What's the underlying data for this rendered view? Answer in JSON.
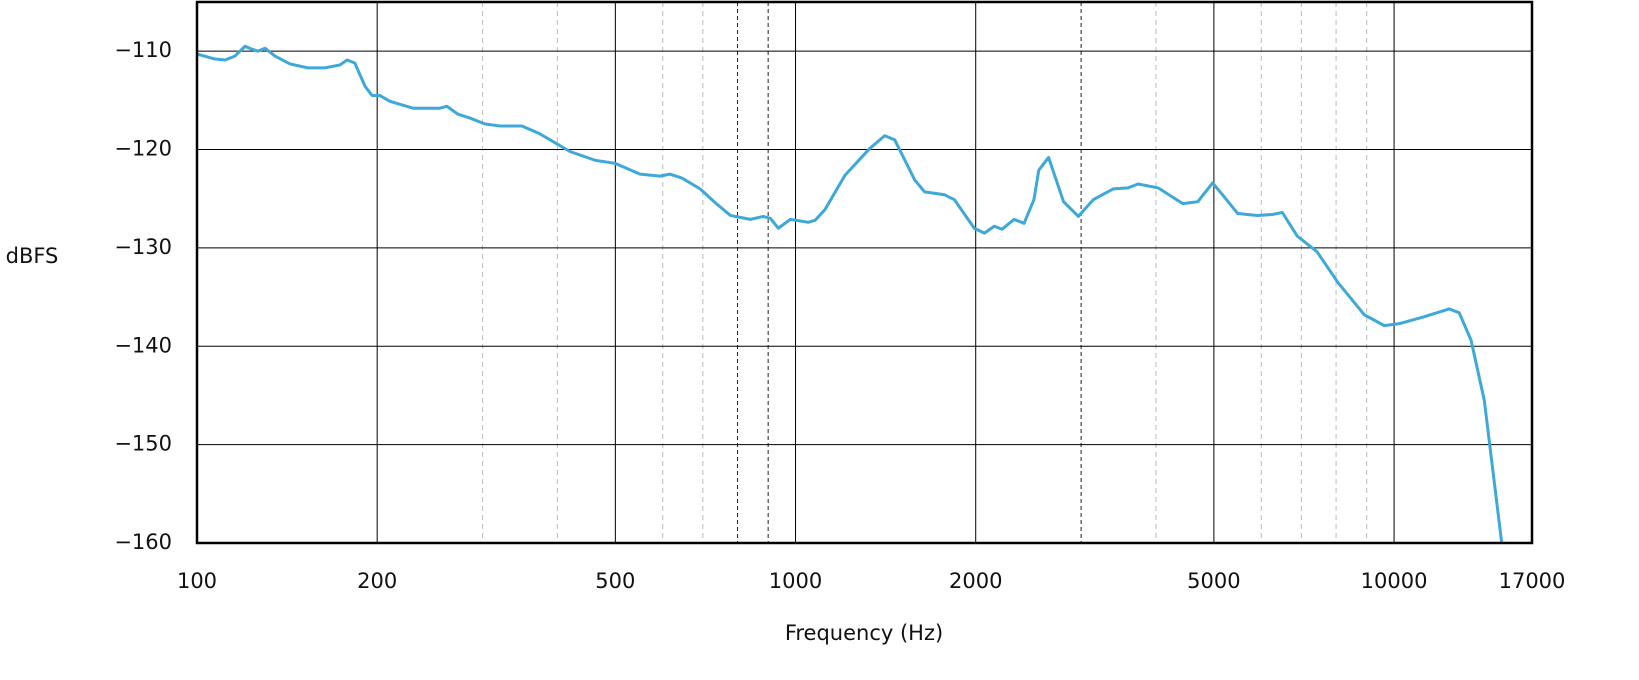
{
  "chart_data": {
    "type": "line",
    "x_label": "Frequency (Hz)",
    "y_label": "dBFS",
    "x_scale": "log",
    "grid": true,
    "xlim": [
      100,
      17000
    ],
    "xticks": [
      100,
      200,
      500,
      1000,
      2000,
      5000,
      10000,
      17000
    ],
    "minor_xticks": [
      300,
      400,
      600,
      700,
      4000,
      6000,
      7000,
      8000,
      9000
    ],
    "reference_lines": [
      800,
      900,
      3000
    ],
    "ylim": [
      -160,
      -105
    ],
    "yticks": [
      {
        "value": -110,
        "label": "−110"
      },
      {
        "value": -120,
        "label": "−120"
      },
      {
        "value": -130,
        "label": "−130"
      },
      {
        "value": -140,
        "label": "−140"
      },
      {
        "value": -150,
        "label": "−150"
      },
      {
        "value": -160,
        "label": "−160"
      }
    ],
    "series": [
      {
        "color": "#3ea8d8",
        "x": [
          100,
          107.2,
          111.4,
          115.7,
          120.3,
          123.6,
          126.5,
          129.9,
          135,
          143,
          153.2,
          163.6,
          173.3,
          178.1,
          183.5,
          191,
          196.1,
          202,
          210,
          229.6,
          254.7,
          261.4,
          272.8,
          285.8,
          302.8,
          320.4,
          349,
          373.9,
          419.8,
          463.1,
          499.6,
          549.9,
          593.8,
          617,
          646.1,
          692.8,
          734,
          778.3,
          840.5,
          883.2,
          907.9,
          935.8,
          980.3,
          1050,
          1078,
          1120,
          1210,
          1330,
          1409,
          1464,
          1582,
          1643,
          1774,
          1843,
          1989,
          2068,
          2148,
          2214,
          2318,
          2409,
          2502,
          2549,
          2647,
          2804,
          2969,
          3143,
          3394,
          3594,
          3735,
          4035,
          4436,
          4700,
          4976,
          5170,
          5477,
          5913,
          6262,
          6507,
          6890,
          7436,
          8076,
          8920,
          9631,
          10200,
          11220,
          12360,
          12850,
          13450,
          14150,
          15130
        ],
        "values": [
          -110.3,
          -110.8,
          -110.9,
          -110.5,
          -109.5,
          -109.8,
          -110,
          -109.7,
          -110.5,
          -111.3,
          -111.7,
          -111.7,
          -111.4,
          -110.9,
          -111.2,
          -113.6,
          -114.5,
          -114.5,
          -115.1,
          -115.8,
          -115.8,
          -115.6,
          -116.4,
          -116.8,
          -117.4,
          -117.6,
          -117.6,
          -118.4,
          -120.2,
          -121.1,
          -121.4,
          -122.5,
          -122.7,
          -122.5,
          -122.9,
          -124,
          -125.4,
          -126.7,
          -127.1,
          -126.8,
          -127,
          -128,
          -127.1,
          -127.4,
          -127.2,
          -126.1,
          -122.6,
          -119.9,
          -118.6,
          -119,
          -123.1,
          -124.3,
          -124.6,
          -125.1,
          -128,
          -128.5,
          -127.8,
          -128.1,
          -127.1,
          -127.5,
          -125.1,
          -122.1,
          -120.8,
          -125.3,
          -126.8,
          -125.1,
          -124,
          -123.9,
          -123.5,
          -123.9,
          -125.5,
          -125.3,
          -123.4,
          -124.6,
          -126.5,
          -126.7,
          -126.6,
          -126.4,
          -128.8,
          -130.4,
          -133.6,
          -136.8,
          -137.9,
          -137.7,
          -137,
          -136.2,
          -136.6,
          -139.4,
          -145.5,
          -160
        ]
      }
    ]
  }
}
